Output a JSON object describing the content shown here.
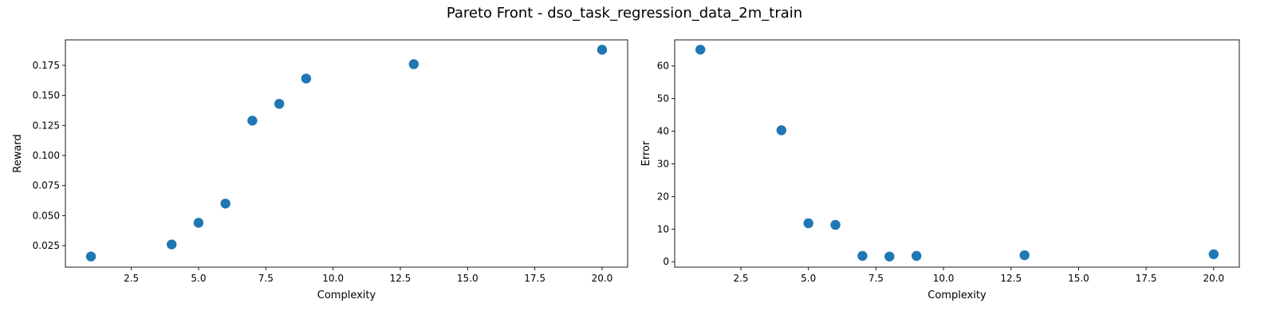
{
  "figure": {
    "title": "Pareto Front - dso_task_regression_data_2m_train",
    "marker_color": "#1f77b4"
  },
  "chart_data": [
    {
      "type": "scatter",
      "xlabel": "Complexity",
      "ylabel": "Reward",
      "xlim": [
        0.05,
        20.95
      ],
      "ylim": [
        0.0071,
        0.1962
      ],
      "xticks": [
        2.5,
        5.0,
        7.5,
        10.0,
        12.5,
        15.0,
        17.5,
        20.0
      ],
      "xtick_labels": [
        "2.5",
        "5.0",
        "7.5",
        "10.0",
        "12.5",
        "15.0",
        "17.5",
        "20.0"
      ],
      "yticks": [
        0.025,
        0.05,
        0.075,
        0.1,
        0.125,
        0.15,
        0.175
      ],
      "ytick_labels": [
        "0.025",
        "0.050",
        "0.075",
        "0.100",
        "0.125",
        "0.150",
        "0.175"
      ],
      "grid": false,
      "x": [
        1,
        4,
        5,
        6,
        7,
        8,
        9,
        13,
        20
      ],
      "y": [
        0.016,
        0.026,
        0.044,
        0.06,
        0.129,
        0.143,
        0.164,
        0.176,
        0.188
      ]
    },
    {
      "type": "scatter",
      "xlabel": "Complexity",
      "ylabel": "Error",
      "xlim": [
        0.05,
        20.95
      ],
      "ylim": [
        -1.66,
        68.0
      ],
      "xticks": [
        2.5,
        5.0,
        7.5,
        10.0,
        12.5,
        15.0,
        17.5,
        20.0
      ],
      "xtick_labels": [
        "2.5",
        "5.0",
        "7.5",
        "10.0",
        "12.5",
        "15.0",
        "17.5",
        "20.0"
      ],
      "yticks": [
        0,
        10,
        20,
        30,
        40,
        50,
        60
      ],
      "ytick_labels": [
        "0",
        "10",
        "20",
        "30",
        "40",
        "50",
        "60"
      ],
      "grid": false,
      "x": [
        1,
        4,
        5,
        6,
        7,
        8,
        9,
        13,
        20
      ],
      "y": [
        65.0,
        40.3,
        11.8,
        11.3,
        1.8,
        1.6,
        1.8,
        2.0,
        2.3
      ]
    }
  ]
}
